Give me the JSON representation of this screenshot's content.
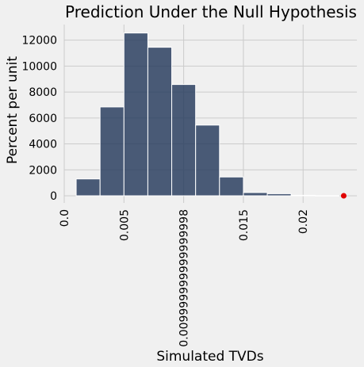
{
  "chart_data": {
    "type": "histogram",
    "title": "Prediction Under the Null Hypothesis",
    "xlabel": "Simulated TVDs",
    "ylabel": "Percent per unit",
    "xlim": [
      0,
      0.0245
    ],
    "ylim": [
      -550,
      13200
    ],
    "grid": true,
    "bins": [
      {
        "x0": 0.001,
        "x1": 0.003,
        "value": 1300
      },
      {
        "x0": 0.003,
        "x1": 0.005,
        "value": 6850
      },
      {
        "x0": 0.005,
        "x1": 0.007,
        "value": 12550
      },
      {
        "x0": 0.007,
        "x1": 0.009,
        "value": 11450
      },
      {
        "x0": 0.009,
        "x1": 0.011,
        "value": 8580
      },
      {
        "x0": 0.011,
        "x1": 0.013,
        "value": 5450
      },
      {
        "x0": 0.013,
        "x1": 0.015,
        "value": 1450
      },
      {
        "x0": 0.015,
        "x1": 0.017,
        "value": 250
      },
      {
        "x0": 0.017,
        "x1": 0.019,
        "value": 160
      },
      {
        "x0": 0.019,
        "x1": 0.021,
        "value": 40
      },
      {
        "x0": 0.021,
        "x1": 0.023,
        "value": 10
      }
    ],
    "yticks": [
      0,
      2000,
      4000,
      6000,
      8000,
      10000,
      12000
    ],
    "ytick_labels": [
      "0",
      "2000",
      "4000",
      "6000",
      "8000",
      "10000",
      "12000"
    ],
    "xticks": [
      0.0,
      0.005,
      0.01,
      0.015,
      0.02
    ],
    "xtick_labels": [
      "0.0",
      "0.005",
      "0.009999999999999998",
      "0.015",
      "0.02"
    ],
    "observed_point": {
      "x": 0.0234,
      "y": 0
    },
    "colors": {
      "bar": "#1f3557",
      "marker": "#e00000",
      "background": "#f0f0f0"
    }
  }
}
